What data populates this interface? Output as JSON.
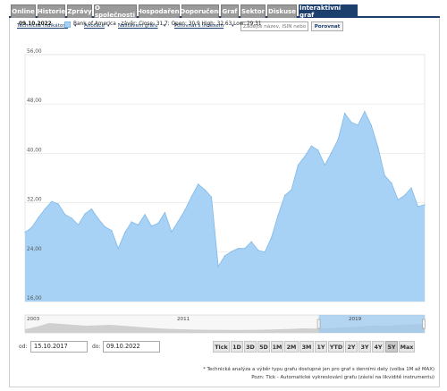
{
  "tabs": [
    {
      "label": "Online",
      "active": false
    },
    {
      "label": "Historie",
      "active": false
    },
    {
      "label": "Zprávy",
      "active": false
    },
    {
      "label": "O společnosti",
      "active": false
    },
    {
      "label": "Hospodaření",
      "active": false
    },
    {
      "label": "Doporučení",
      "active": false
    },
    {
      "label": "Graf",
      "active": false
    },
    {
      "label": "Sektor",
      "active": false
    },
    {
      "label": "Diskuse",
      "active": false
    },
    {
      "label": "Interaktivní graf",
      "active": true
    }
  ],
  "toolbar": {
    "indicators": "Technické indikátory",
    "annotations": "Anotace",
    "settings": "Nastavení grafu",
    "compare": "Porovnat s indexem",
    "search_placeholder": "Zadejte název, ISIN nebo symbol",
    "compare_button": "Porovnat"
  },
  "legend": {
    "date": "09.10.2022",
    "text": "Bank of America - závěr: Close: 31,7; Open: 30,9 High: 32,63 Low: 29,31",
    "color": "#a8d2f5"
  },
  "colors": {
    "area_fill": "#a8d2f5",
    "area_stroke": "#7fb9e8",
    "navigator_fill": "#d0d0d0",
    "navigator_selected": "#9ec9ef",
    "tab_active": "#1c3f6e",
    "tab_inactive": "#9a9a9a"
  },
  "chart_data": {
    "type": "area",
    "series": [
      {
        "name": "Bank of America"
      }
    ],
    "y_ticks": [
      "56,00",
      "48,00",
      "40,00",
      "32,00",
      "24,00",
      "16,00"
    ],
    "ylim": [
      16,
      56
    ],
    "xlim": [
      "2017-10-15",
      "2022-10-09"
    ],
    "grid": true,
    "x": [
      "2017-10",
      "2017-11",
      "2017-12",
      "2018-01",
      "2018-02",
      "2018-03",
      "2018-04",
      "2018-05",
      "2018-06",
      "2018-07",
      "2018-08",
      "2018-09",
      "2018-10",
      "2018-11",
      "2018-12",
      "2019-01",
      "2019-02",
      "2019-03",
      "2019-04",
      "2019-05",
      "2019-06",
      "2019-07",
      "2019-08",
      "2019-09",
      "2019-10",
      "2019-11",
      "2019-12",
      "2020-01",
      "2020-02",
      "2020-03",
      "2020-04",
      "2020-05",
      "2020-06",
      "2020-07",
      "2020-08",
      "2020-09",
      "2020-10",
      "2020-11",
      "2020-12",
      "2021-01",
      "2021-02",
      "2021-03",
      "2021-04",
      "2021-05",
      "2021-06",
      "2021-07",
      "2021-08",
      "2021-09",
      "2021-10",
      "2021-11",
      "2021-12",
      "2022-01",
      "2022-02",
      "2022-03",
      "2022-04",
      "2022-05",
      "2022-06",
      "2022-07",
      "2022-08",
      "2022-09",
      "2022-10"
    ],
    "values": [
      27.2,
      28.0,
      29.6,
      31.0,
      32.2,
      31.8,
      30.1,
      29.5,
      28.4,
      30.2,
      31.0,
      29.4,
      28.1,
      27.5,
      24.6,
      27.2,
      28.9,
      28.4,
      30.1,
      28.2,
      28.7,
      30.4,
      27.3,
      29.0,
      30.8,
      33.0,
      35.0,
      34.1,
      32.9,
      21.7,
      23.4,
      24.1,
      24.6,
      24.6,
      25.7,
      24.3,
      24.0,
      26.4,
      30.0,
      33.2,
      34.1,
      38.1,
      39.5,
      41.2,
      40.5,
      38.1,
      40.1,
      42.2,
      46.5,
      45.0,
      44.6,
      46.8,
      44.5,
      41.0,
      36.4,
      35.2,
      32.5,
      33.2,
      34.4,
      31.4,
      31.7
    ]
  },
  "navigator": {
    "labels": [
      "2003",
      "2011",
      "2019"
    ]
  },
  "range": {
    "from_label": "od:",
    "from_value": "15.10.2017",
    "to_label": "do:",
    "to_value": "09.10.2022"
  },
  "zoom": [
    {
      "label": "Tick",
      "active": false
    },
    {
      "label": "1D",
      "active": false
    },
    {
      "label": "3D",
      "active": false
    },
    {
      "label": "5D",
      "active": false
    },
    {
      "label": "1M",
      "active": false
    },
    {
      "label": "2M",
      "active": false
    },
    {
      "label": "3M",
      "active": false
    },
    {
      "label": "1Y",
      "active": false
    },
    {
      "label": "YTD",
      "active": false
    },
    {
      "label": "2Y",
      "active": false
    },
    {
      "label": "3Y",
      "active": false
    },
    {
      "label": "4Y",
      "active": false
    },
    {
      "label": "5Y",
      "active": true
    },
    {
      "label": "Max",
      "active": false
    }
  ],
  "footnotes": [
    "* Technická analýza a výběr typu grafu dostupné jen pro graf s denními daty (volba 1M až MAX)",
    "Pozn: Tick - Automatické vykreslování grafu (závisí na likviditě instrumentu)"
  ]
}
